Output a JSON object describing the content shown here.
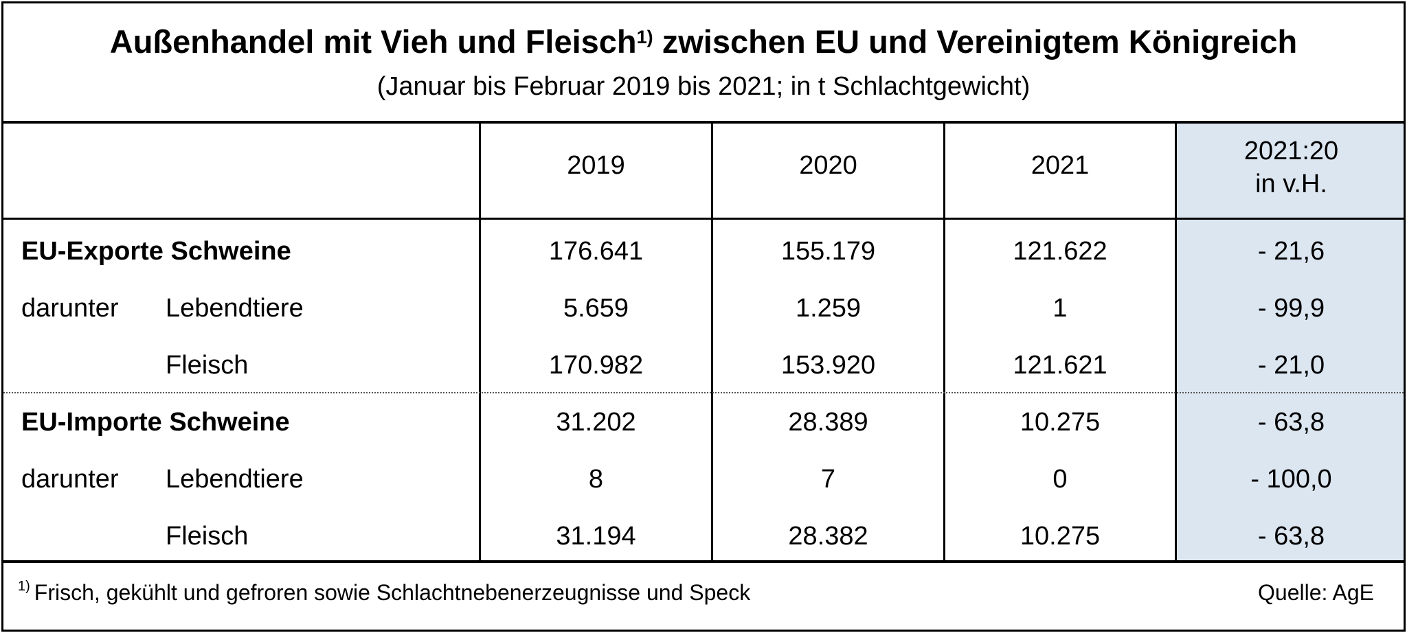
{
  "header": {
    "title_main": "Außenhandel mit Vieh und Fleisch",
    "title_sup": "1)",
    "title_rest": " zwischen EU und Vereinigtem Königreich",
    "subtitle": "(Januar bis Februar 2019 bis 2021; in t Schlachtgewicht)"
  },
  "columns": {
    "y2019": "2019",
    "y2020": "2020",
    "y2021": "2021",
    "change_line1": "2021:20",
    "change_line2": "in v.H."
  },
  "rows": [
    {
      "group": "EU-Exporte Schweine",
      "sub": "",
      "v2019": "176.641",
      "v2020": "155.179",
      "v2021": "121.622",
      "change": "- 21,6"
    },
    {
      "group": "darunter",
      "sub": "Lebendtiere",
      "v2019": "5.659",
      "v2020": "1.259",
      "v2021": "1",
      "change": "- 99,9"
    },
    {
      "group": "",
      "sub": "Fleisch",
      "v2019": "170.982",
      "v2020": "153.920",
      "v2021": "121.621",
      "change": "- 21,0"
    },
    {
      "group": "EU-Importe Schweine",
      "sub": "",
      "v2019": "31.202",
      "v2020": "28.389",
      "v2021": "10.275",
      "change": "- 63,8"
    },
    {
      "group": "darunter",
      "sub": "Lebendtiere",
      "v2019": "8",
      "v2020": "7",
      "v2021": "0",
      "change": "- 100,0"
    },
    {
      "group": "",
      "sub": "Fleisch",
      "v2019": "31.194",
      "v2020": "28.382",
      "v2021": "10.275",
      "change": "- 63,8"
    }
  ],
  "footer": {
    "note_sup": "1)",
    "note": "Frisch, gekühlt und gefroren sowie Schlachtnebenerzeugnisse und Speck",
    "source": "Quelle: AgE"
  },
  "colors": {
    "highlight_column": "#dce6f1"
  },
  "chart_data": {
    "type": "table",
    "title": "Außenhandel mit Vieh und Fleisch zwischen EU und Vereinigtem Königreich",
    "subtitle": "(Januar bis Februar 2019 bis 2021; in t Schlachtgewicht)",
    "columns": [
      "2019",
      "2020",
      "2021",
      "2021:20 in v.H."
    ],
    "rows": [
      {
        "label": "EU-Exporte Schweine",
        "values": [
          176641,
          155179,
          121622,
          -21.6
        ]
      },
      {
        "label": "darunter Lebendtiere",
        "values": [
          5659,
          1259,
          1,
          -99.9
        ]
      },
      {
        "label": "Fleisch",
        "values": [
          170982,
          153920,
          121621,
          -21.0
        ]
      },
      {
        "label": "EU-Importe Schweine",
        "values": [
          31202,
          28389,
          10275,
          -63.8
        ]
      },
      {
        "label": "darunter Lebendtiere",
        "values": [
          8,
          7,
          0,
          -100.0
        ]
      },
      {
        "label": "Fleisch",
        "values": [
          31194,
          28382,
          10275,
          -63.8
        ]
      }
    ]
  }
}
